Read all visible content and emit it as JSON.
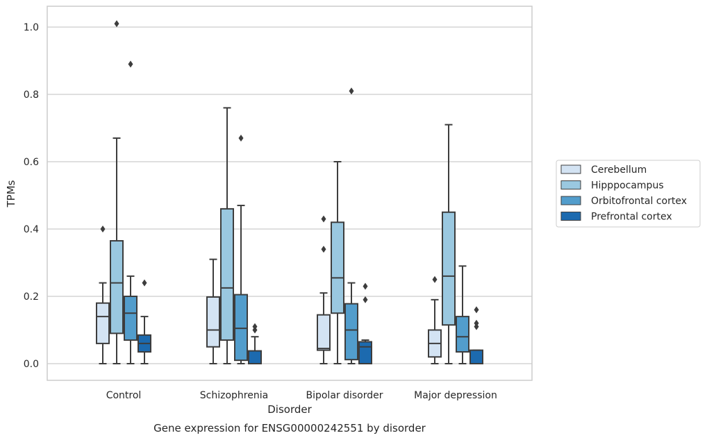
{
  "chart_data": {
    "type": "box",
    "title": "",
    "caption": "Gene expression for ENSG00000242551 by disorder",
    "xlabel": "Disorder",
    "ylabel": "TPMs",
    "ylim": [
      -0.05,
      1.06
    ],
    "yticks": [
      0.0,
      0.2,
      0.4,
      0.6,
      0.8,
      1.0
    ],
    "ytick_labels": [
      "0.0",
      "0.2",
      "0.4",
      "0.6",
      "0.8",
      "1.0"
    ],
    "grid": "horizontal",
    "legend_position": "right",
    "categories": [
      "Control",
      "Schizophrenia",
      "Bipolar disorder",
      "Major depression"
    ],
    "series": [
      {
        "name": "Cerebellum",
        "color": "#d3e3f3",
        "boxes": [
          {
            "whisker_low": 0.0,
            "q1": 0.06,
            "median": 0.14,
            "q3": 0.18,
            "whisker_high": 0.24,
            "outliers": [
              0.4
            ]
          },
          {
            "whisker_low": 0.0,
            "q1": 0.05,
            "median": 0.1,
            "q3": 0.198,
            "whisker_high": 0.31,
            "outliers": []
          },
          {
            "whisker_low": 0.0,
            "q1": 0.04,
            "median": 0.045,
            "q3": 0.145,
            "whisker_high": 0.21,
            "outliers": [
              0.34,
              0.43
            ]
          },
          {
            "whisker_low": 0.0,
            "q1": 0.02,
            "median": 0.06,
            "q3": 0.1,
            "whisker_high": 0.19,
            "outliers": [
              0.25
            ]
          }
        ]
      },
      {
        "name": "Hipppocampus",
        "color": "#9ac8e0",
        "boxes": [
          {
            "whisker_low": 0.0,
            "q1": 0.09,
            "median": 0.24,
            "q3": 0.365,
            "whisker_high": 0.67,
            "outliers": [
              1.01
            ]
          },
          {
            "whisker_low": 0.0,
            "q1": 0.07,
            "median": 0.225,
            "q3": 0.46,
            "whisker_high": 0.76,
            "outliers": []
          },
          {
            "whisker_low": 0.0,
            "q1": 0.15,
            "median": 0.255,
            "q3": 0.42,
            "whisker_high": 0.6,
            "outliers": []
          },
          {
            "whisker_low": 0.0,
            "q1": 0.115,
            "median": 0.26,
            "q3": 0.45,
            "whisker_high": 0.71,
            "outliers": []
          }
        ]
      },
      {
        "name": "Orbitofrontal cortex",
        "color": "#529dcc",
        "boxes": [
          {
            "whisker_low": 0.0,
            "q1": 0.07,
            "median": 0.15,
            "q3": 0.2,
            "whisker_high": 0.26,
            "outliers": [
              0.89
            ]
          },
          {
            "whisker_low": 0.0,
            "q1": 0.01,
            "median": 0.105,
            "q3": 0.205,
            "whisker_high": 0.47,
            "outliers": [
              0.67
            ]
          },
          {
            "whisker_low": 0.0,
            "q1": 0.012,
            "median": 0.1,
            "q3": 0.178,
            "whisker_high": 0.24,
            "outliers": [
              0.81
            ]
          },
          {
            "whisker_low": 0.0,
            "q1": 0.035,
            "median": 0.08,
            "q3": 0.14,
            "whisker_high": 0.29,
            "outliers": []
          }
        ]
      },
      {
        "name": "Prefrontal cortex",
        "color": "#1c6aaf",
        "boxes": [
          {
            "whisker_low": 0.0,
            "q1": 0.035,
            "median": 0.06,
            "q3": 0.085,
            "whisker_high": 0.14,
            "outliers": [
              0.24
            ]
          },
          {
            "whisker_low": 0.0,
            "q1": 0.0,
            "median": 0.0,
            "q3": 0.038,
            "whisker_high": 0.08,
            "outliers": [
              0.1,
              0.11
            ]
          },
          {
            "whisker_low": 0.0,
            "q1": 0.0,
            "median": 0.05,
            "q3": 0.065,
            "whisker_high": 0.07,
            "outliers": [
              0.19,
              0.23
            ]
          },
          {
            "whisker_low": 0.0,
            "q1": 0.0,
            "median": 0.0,
            "q3": 0.04,
            "whisker_high": 0.04,
            "outliers": [
              0.11,
              0.12,
              0.16
            ]
          }
        ]
      }
    ]
  }
}
